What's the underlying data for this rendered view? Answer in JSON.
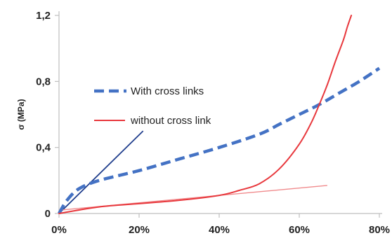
{
  "chart_data": {
    "type": "line",
    "title": "",
    "xlabel": "",
    "ylabel": "σ (MPa)",
    "xlim": [
      0,
      80
    ],
    "ylim": [
      0,
      1.2
    ],
    "x_ticks": [
      {
        "value": 0,
        "label": "0%"
      },
      {
        "value": 20,
        "label": "20%"
      },
      {
        "value": 40,
        "label": "40%"
      },
      {
        "value": 60,
        "label": "60%"
      },
      {
        "value": 80,
        "label": "80%"
      }
    ],
    "y_ticks": [
      {
        "value": 0,
        "label": "0"
      },
      {
        "value": 0.4,
        "label": "0,4"
      },
      {
        "value": 0.8,
        "label": "0,8"
      },
      {
        "value": 1.2,
        "label": "1,2"
      }
    ],
    "grid": false,
    "legend_position": "left",
    "series": [
      {
        "name": "With cross links",
        "color": "#4472c4",
        "style": "dashed",
        "x": [
          0,
          2,
          5,
          10,
          20,
          30,
          40,
          50,
          55,
          60,
          65,
          70,
          75,
          80
        ],
        "y": [
          0,
          0.08,
          0.15,
          0.2,
          0.26,
          0.33,
          0.4,
          0.48,
          0.54,
          0.6,
          0.66,
          0.73,
          0.8,
          0.88
        ]
      },
      {
        "name": "without cross link",
        "color": "#e8383d",
        "style": "solid",
        "x": [
          0,
          10,
          20,
          30,
          40,
          45,
          50,
          55,
          60,
          63,
          65,
          67,
          69,
          71,
          72,
          73
        ],
        "y": [
          0,
          0.04,
          0.06,
          0.08,
          0.11,
          0.14,
          0.18,
          0.27,
          0.42,
          0.55,
          0.66,
          0.78,
          0.92,
          1.05,
          1.13,
          1.2
        ]
      }
    ],
    "reference_lines": [
      {
        "color": "#1f3d8c",
        "x": [
          0,
          21
        ],
        "y": [
          0,
          0.5
        ]
      },
      {
        "color": "#f08a8c",
        "x": [
          0,
          67
        ],
        "y": [
          0.02,
          0.17
        ]
      }
    ]
  }
}
